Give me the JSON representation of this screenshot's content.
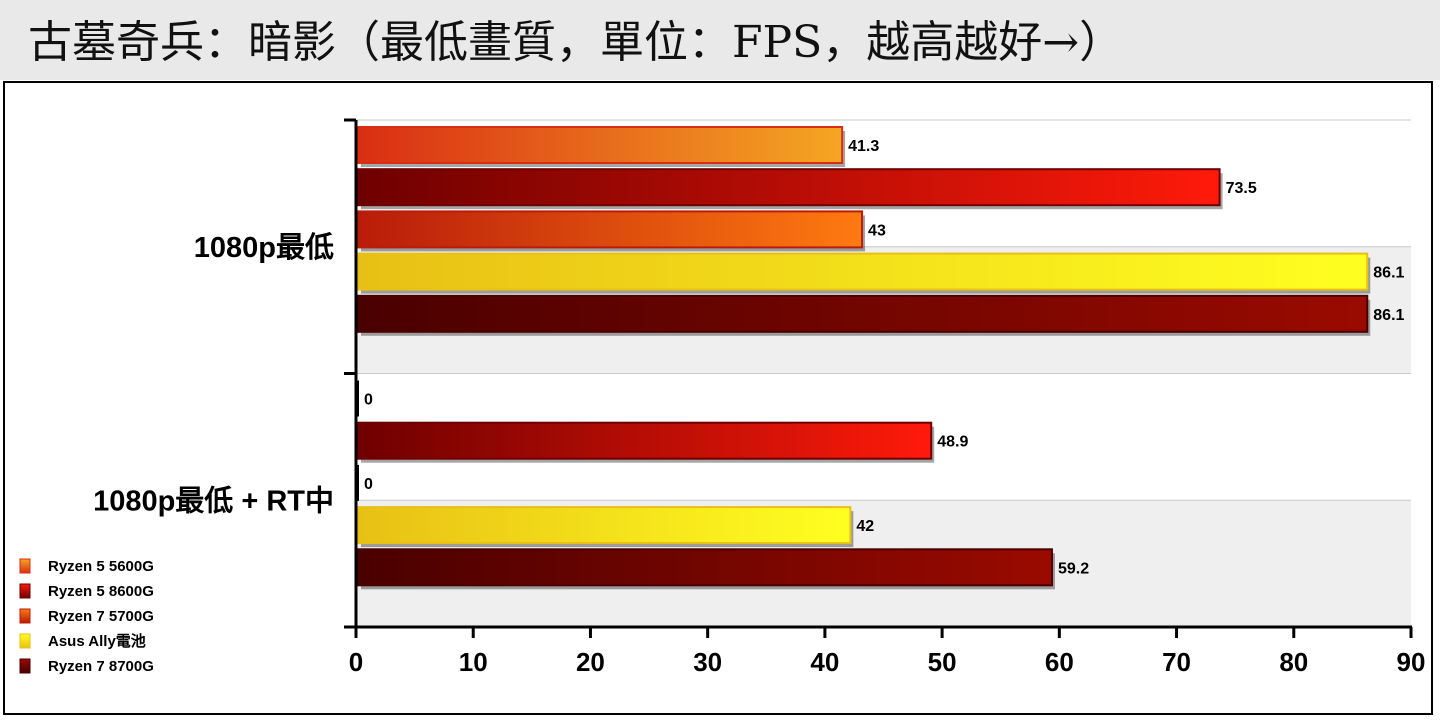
{
  "title": "古墓奇兵：暗影（最低畫質，單位：FPS，越高越好→）",
  "chart_data": {
    "type": "bar",
    "orientation": "horizontal",
    "title": "古墓奇兵：暗影（最低畫質，單位：FPS，越高越好→）",
    "categories": [
      "1080p最低",
      "1080p最低 + RT中"
    ],
    "xlim": [
      0,
      90
    ],
    "xticks": [
      0,
      10,
      20,
      30,
      40,
      50,
      60,
      70,
      80,
      90
    ],
    "grid": true,
    "legend_position": "bottom-left",
    "series": [
      {
        "name": "Ryzen 5 5600G",
        "values": [
          41.3,
          0
        ],
        "colors": [
          "#d92e14",
          "#f5a623"
        ]
      },
      {
        "name": "Ryzen 5 8600G",
        "values": [
          73.5,
          48.9
        ],
        "colors": [
          "#6e0000",
          "#ff1a0a"
        ]
      },
      {
        "name": "Ryzen 7 5700G",
        "values": [
          43,
          0
        ],
        "colors": [
          "#b81c0a",
          "#ff7a10"
        ]
      },
      {
        "name": "Asus Ally電池",
        "values": [
          86.1,
          42
        ],
        "colors": [
          "#e8c015",
          "#ffff20"
        ]
      },
      {
        "name": "Ryzen 7 8700G",
        "values": [
          86.1,
          59.2
        ],
        "colors": [
          "#4a0000",
          "#9a0a00"
        ]
      }
    ]
  }
}
